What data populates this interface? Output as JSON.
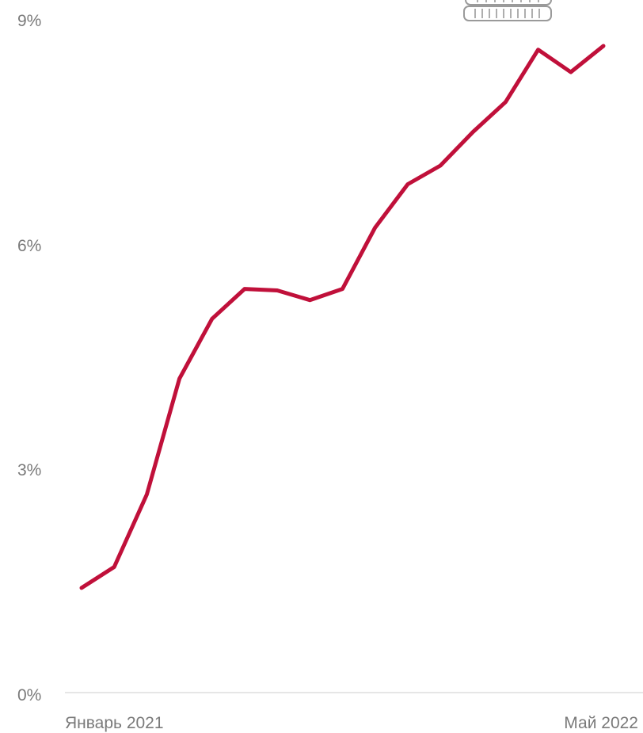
{
  "chart_data": {
    "type": "line",
    "title": "",
    "xlabel": "",
    "ylabel": "",
    "x_tick_labels": [
      "Январь 2021",
      "Май 2022"
    ],
    "y_tick_labels": [
      "0%",
      "3%",
      "6%",
      "9%"
    ],
    "y_ticks": [
      0,
      3,
      6,
      9
    ],
    "ylim": [
      0,
      9
    ],
    "grid": false,
    "legend": "none",
    "color": "#c0103a",
    "series": [
      {
        "x": [
          "2021-01",
          "2021-02",
          "2021-03",
          "2021-04",
          "2021-05",
          "2021-06",
          "2021-07",
          "2021-08",
          "2021-09",
          "2021-10",
          "2021-11",
          "2021-12",
          "2022-01",
          "2022-02",
          "2022-03",
          "2022-04",
          "2022-05"
        ],
        "values": [
          1.4,
          1.68,
          2.65,
          4.2,
          5.0,
          5.4,
          5.38,
          5.25,
          5.4,
          6.22,
          6.8,
          7.05,
          7.5,
          7.9,
          8.6,
          8.3,
          8.65
        ]
      }
    ]
  },
  "decoration": {
    "icon": "coin-stack-icon",
    "color": "#9a9a9a"
  }
}
